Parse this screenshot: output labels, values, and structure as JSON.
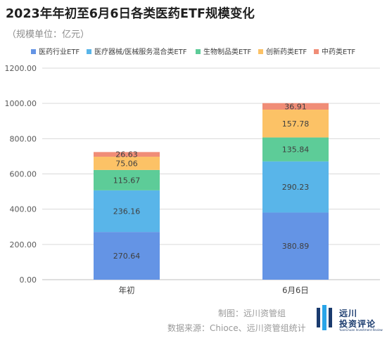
{
  "title": "2023年年初至6月6日各类医药ETF规模变化",
  "subtitle": "（规模单位：亿元）",
  "chart_data": {
    "type": "bar",
    "stacked": true,
    "categories": [
      "年初",
      "6月6日"
    ],
    "series": [
      {
        "name": "医药行业ETF",
        "color": "#6494e5",
        "values": [
          270.64,
          380.89
        ]
      },
      {
        "name": "医疗器械/医械服务混合类ETF",
        "color": "#59b5e9",
        "values": [
          236.16,
          290.23
        ]
      },
      {
        "name": "生物制品类ETF",
        "color": "#5dcc98",
        "values": [
          115.67,
          135.84
        ]
      },
      {
        "name": "创新药类ETF",
        "color": "#fcc266",
        "values": [
          75.06,
          157.78
        ]
      },
      {
        "name": "中药类ETF",
        "color": "#f08d77",
        "values": [
          26.63,
          36.91
        ]
      }
    ],
    "ylim": [
      0,
      1200
    ],
    "yticks": [
      "0.00",
      "200.00",
      "400.00",
      "600.00",
      "800.00",
      "1000.00",
      "1200.00"
    ],
    "ytick_values": [
      0,
      200,
      400,
      600,
      800,
      1000,
      1200
    ],
    "value_labels": [
      [
        "270.64",
        "380.89"
      ],
      [
        "236.16",
        "290.23"
      ],
      [
        "115.67",
        "135.84"
      ],
      [
        "75.06",
        "157.78"
      ],
      [
        "26.63",
        "36.91"
      ]
    ],
    "grid": true,
    "legend": "top"
  },
  "footer": {
    "line1": "制图：远川资管组",
    "line2": "数据来源：Chioce、远川资管组统计"
  },
  "logo": {
    "name_line1": "远川",
    "name_line2": "投资评论",
    "tagline": "YuanChuan Investment Review"
  }
}
